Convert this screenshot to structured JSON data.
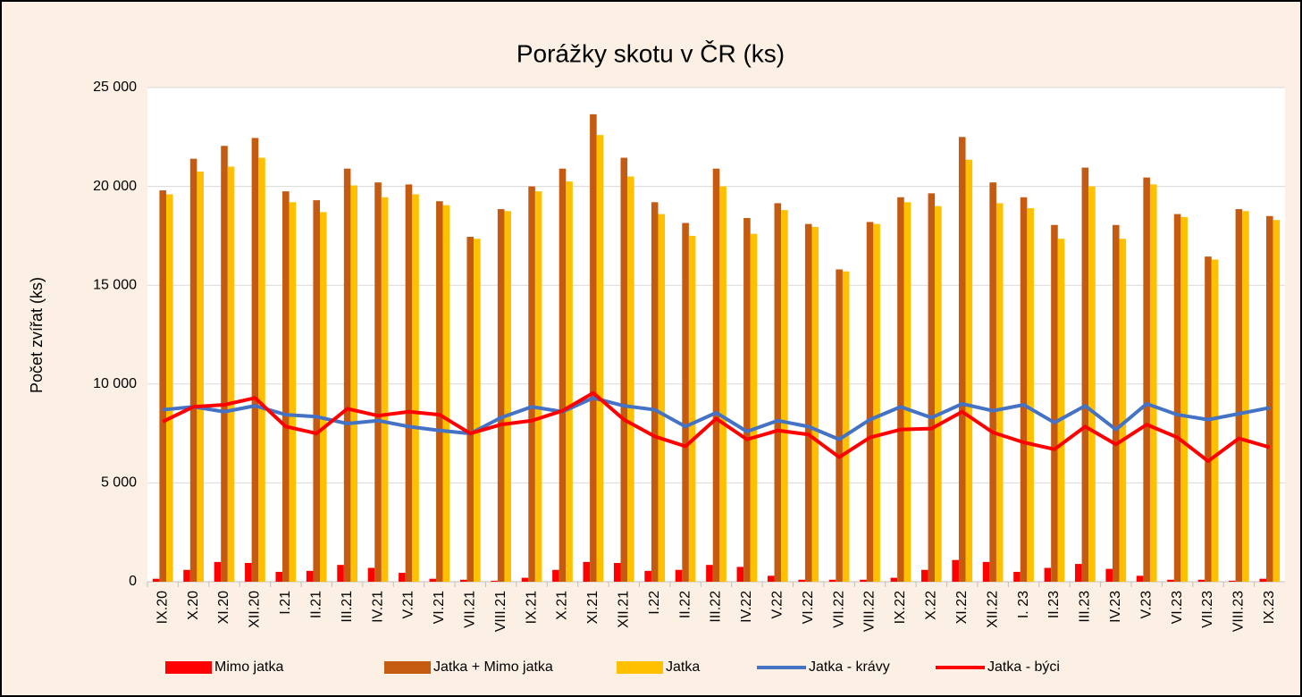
{
  "chart_data": {
    "type": "bar",
    "title": "Porážky skotu v ČR (ks)",
    "y_label": "Počet zvířat (ks)",
    "categories": [
      "IX.20",
      "X.20",
      "XI.20",
      "XII.20",
      "I.21",
      "II.21",
      "III.21",
      "IV.21",
      "V.21",
      "VI.21",
      "VII.21",
      "VIII.21",
      "IX.21",
      "X.21",
      "XI.21",
      "XII.21",
      "I.22",
      "II.22",
      "III.22",
      "IV.22",
      "V.22",
      "VI.22",
      "VII.22",
      "VIII.22",
      "IX.22",
      "X.22",
      "XI.22",
      "XII.22",
      "I. 23",
      "II.23",
      "III.23",
      "IV.23",
      "V.23",
      "VI.23",
      "VII.23",
      "VIII.23",
      "IX.23"
    ],
    "series": [
      {
        "name": "Mimo jatka",
        "type": "bar",
        "color": "#ff0000",
        "values": [
          150,
          600,
          1000,
          950,
          500,
          550,
          850,
          700,
          450,
          150,
          100,
          50,
          200,
          600,
          1000,
          950,
          550,
          600,
          850,
          750,
          300,
          100,
          100,
          100,
          200,
          600,
          1100,
          1000,
          500,
          700,
          900,
          650,
          300,
          100,
          100,
          50,
          150
        ]
      },
      {
        "name": "Jatka + Mimo jatka",
        "type": "bar",
        "color": "#c55a11",
        "values": [
          19800,
          21400,
          22050,
          22450,
          19750,
          19300,
          20900,
          20200,
          20100,
          19250,
          17450,
          18850,
          20000,
          20900,
          23650,
          21450,
          19200,
          18150,
          20900,
          18400,
          19150,
          18100,
          15800,
          18200,
          19450,
          19650,
          22500,
          20200,
          19450,
          18050,
          20950,
          18050,
          20450,
          18600,
          16450,
          18850,
          18500
        ]
      },
      {
        "name": "Jatka",
        "type": "bar",
        "color": "#ffc000",
        "values": [
          19600,
          20750,
          21000,
          21450,
          19200,
          18700,
          20050,
          19450,
          19600,
          19050,
          17350,
          18750,
          19750,
          20250,
          22600,
          20500,
          18600,
          17500,
          20000,
          17600,
          18800,
          17950,
          15700,
          18100,
          19200,
          19000,
          21350,
          19150,
          18900,
          17350,
          20000,
          17350,
          20100,
          18450,
          16300,
          18750,
          18300
        ]
      },
      {
        "name": "Jatka - krávy",
        "type": "line",
        "color": "#4472c4",
        "values": [
          8700,
          8850,
          8600,
          8900,
          8450,
          8350,
          8000,
          8150,
          7850,
          7650,
          7500,
          8300,
          8850,
          8600,
          9300,
          8900,
          8700,
          7850,
          8550,
          7600,
          8150,
          7850,
          7200,
          8200,
          8850,
          8300,
          9000,
          8650,
          8950,
          8050,
          8900,
          7700,
          9000,
          8450,
          8200,
          8500,
          8800
        ]
      },
      {
        "name": "Jatka - býci",
        "type": "line",
        "color": "#ff0000",
        "values": [
          8100,
          8850,
          8950,
          9300,
          7850,
          7500,
          8750,
          8400,
          8600,
          8450,
          7500,
          7950,
          8150,
          8650,
          9550,
          8200,
          7350,
          6850,
          8250,
          7200,
          7650,
          7450,
          6300,
          7300,
          7700,
          7750,
          8600,
          7550,
          7050,
          6700,
          7850,
          6950,
          7950,
          7300,
          6100,
          7250,
          6800
        ]
      }
    ],
    "ylim": [
      0,
      25000
    ],
    "yticks": [
      0,
      {
        "value": 5000,
        "label": "5 000"
      },
      {
        "value": 10000,
        "label": "10 000"
      },
      {
        "value": 15000,
        "label": "15 000"
      },
      {
        "value": 20000,
        "label": "20 000"
      },
      {
        "value": 25000,
        "label": "25 000"
      }
    ],
    "grid": true,
    "legend": "bottom"
  }
}
